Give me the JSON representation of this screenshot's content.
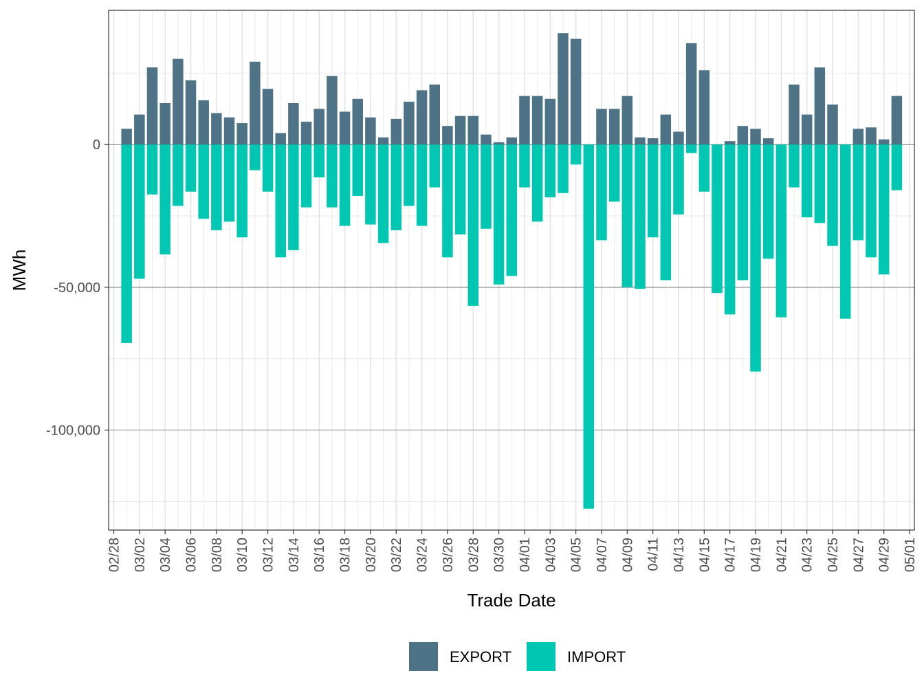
{
  "chart_data": {
    "type": "bar",
    "stacked": true,
    "xlabel": "Trade Date",
    "ylabel": "MWh",
    "ylim": [
      -135000,
      47000
    ],
    "yticks": [
      0,
      -50000,
      -100000
    ],
    "ytick_labels": [
      "0",
      "-50,000",
      "-100,000"
    ],
    "x_tick_labels": [
      "02/28",
      "03/02",
      "03/04",
      "03/06",
      "03/08",
      "03/10",
      "03/12",
      "03/14",
      "03/16",
      "03/18",
      "03/20",
      "03/22",
      "03/24",
      "03/26",
      "03/28",
      "03/30",
      "04/01",
      "04/03",
      "04/05",
      "04/07",
      "04/09",
      "04/11",
      "04/13",
      "04/15",
      "04/17",
      "04/19",
      "04/21",
      "04/23",
      "04/25",
      "04/27",
      "04/29",
      "05/01"
    ],
    "grid": true,
    "legend_position": "bottom",
    "categories": [
      "03/01",
      "03/02",
      "03/03",
      "03/04",
      "03/05",
      "03/06",
      "03/07",
      "03/08",
      "03/09",
      "03/10",
      "03/11",
      "03/12",
      "03/13",
      "03/14",
      "03/15",
      "03/16",
      "03/17",
      "03/18",
      "03/19",
      "03/20",
      "03/21",
      "03/22",
      "03/23",
      "03/24",
      "03/25",
      "03/26",
      "03/27",
      "03/28",
      "03/29",
      "03/30",
      "03/31",
      "04/01",
      "04/02",
      "04/03",
      "04/04",
      "04/05",
      "04/06",
      "04/07",
      "04/08",
      "04/09",
      "04/10",
      "04/11",
      "04/12",
      "04/13",
      "04/14",
      "04/15",
      "04/16",
      "04/17",
      "04/18",
      "04/19",
      "04/20",
      "04/21",
      "04/22",
      "04/23",
      "04/24",
      "04/25",
      "04/26",
      "04/27",
      "04/28",
      "04/29",
      "04/30"
    ],
    "series": [
      {
        "name": "EXPORT",
        "color": "#4f7386",
        "values": [
          5500,
          10500,
          27000,
          14500,
          30000,
          22500,
          15500,
          11000,
          9500,
          7500,
          29000,
          19500,
          4000,
          14500,
          8000,
          12500,
          24000,
          11500,
          16000,
          9500,
          2500,
          9000,
          15000,
          19000,
          21000,
          6500,
          10000,
          10000,
          3500,
          800,
          2500,
          17000,
          17000,
          16000,
          39000,
          37000,
          0,
          12500,
          12500,
          17000,
          2500,
          2200,
          10500,
          4500,
          35500,
          26000,
          0,
          1200,
          6500,
          5500,
          2200,
          0,
          21000,
          10500,
          27000,
          14000,
          0,
          5500,
          6000,
          1800,
          17000
        ]
      },
      {
        "name": "IMPORT",
        "color": "#00c7b1",
        "values": [
          -69500,
          -47000,
          -17500,
          -38500,
          -21500,
          -16500,
          -26000,
          -30000,
          -27000,
          -32500,
          -9000,
          -16500,
          -39500,
          -37000,
          -22000,
          -11500,
          -22000,
          -28500,
          -18000,
          -28000,
          -34500,
          -30000,
          -21500,
          -28500,
          -15000,
          -39500,
          -31500,
          -56500,
          -29500,
          -49000,
          -46000,
          -15000,
          -27000,
          -18500,
          -17000,
          -7000,
          -127500,
          -33500,
          -20000,
          -50000,
          -50500,
          -32500,
          -47500,
          -24500,
          -3000,
          -16500,
          -52000,
          -59500,
          -47500,
          -79500,
          -40000,
          -60500,
          -15000,
          -25500,
          -27500,
          -35500,
          -61000,
          -33500,
          -39500,
          -45500,
          -16000
        ]
      }
    ]
  }
}
